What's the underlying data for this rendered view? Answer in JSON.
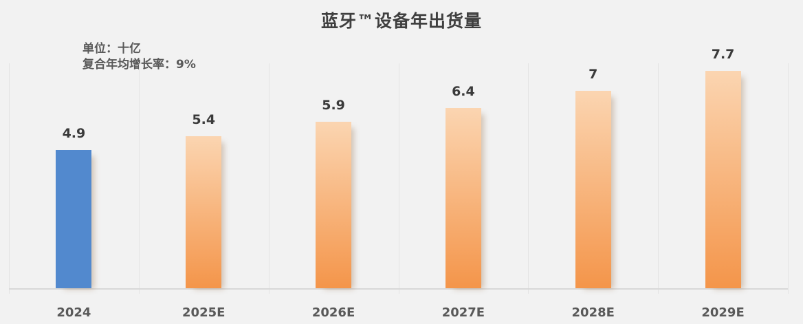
{
  "title": "蓝牙™设备年出货量",
  "subtitle": {
    "unit_label": "单位：十亿",
    "cagr_label": "复合年均增长率：9%"
  },
  "chart_data": {
    "type": "bar",
    "title": "蓝牙™设备年出货量",
    "unit_label": "单位：十亿",
    "cagr_label": "复合年均增长率：9%",
    "categories": [
      "2024",
      "2025E",
      "2026E",
      "2027E",
      "2028E",
      "2029E"
    ],
    "values": [
      4.9,
      5.4,
      5.9,
      6.4,
      7,
      7.7
    ],
    "value_labels": [
      "4.9",
      "5.4",
      "5.9",
      "6.4",
      "7",
      "7.7"
    ],
    "xlabel": "",
    "ylabel": "",
    "ylim": [
      0,
      8
    ],
    "grid": "vertical-only",
    "legend": "none",
    "cagr_percent": 9,
    "colors": {
      "bar_actual": "#5289CE",
      "bar_forecast_top": "#FBD5B1",
      "bar_forecast_bottom": "#F4954A",
      "background": "#F2F2F2",
      "gridline": "#E4E4E4",
      "axis_line": "#D8D8D8",
      "title_text": "#3F3F3F",
      "value_text": "#3A3A3A",
      "category_text": "#595959"
    }
  }
}
